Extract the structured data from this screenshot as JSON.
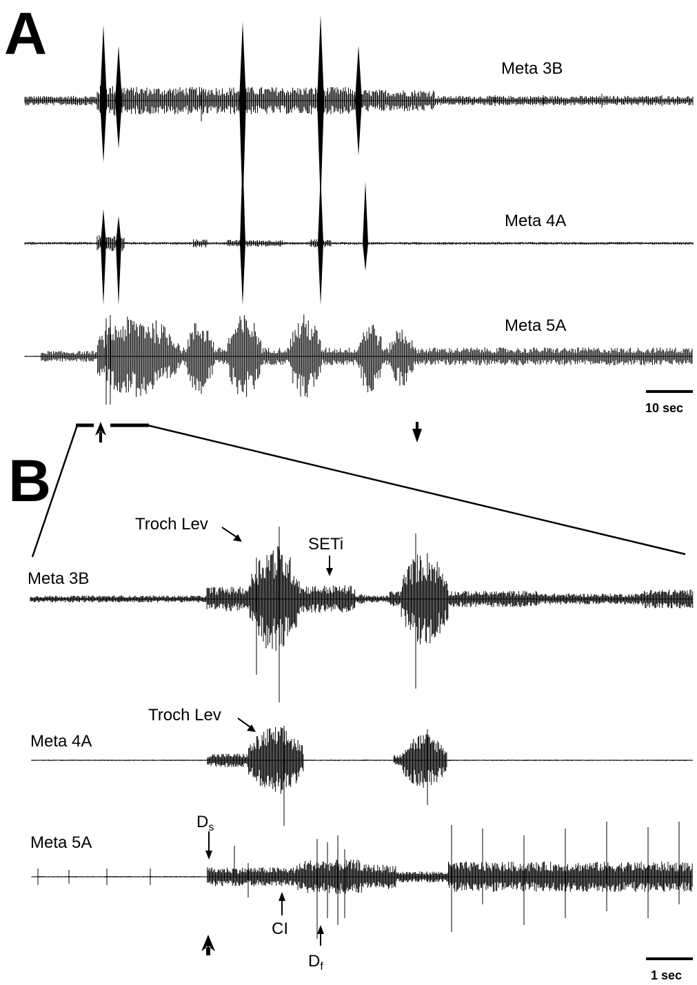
{
  "panel_a": {
    "letter": "A",
    "traces": [
      {
        "label": "Meta 3B"
      },
      {
        "label": "Meta 4A"
      },
      {
        "label": "Meta 5A"
      }
    ],
    "scale_bar_label": "10 sec"
  },
  "panel_b": {
    "letter": "B",
    "traces": [
      {
        "label": "Meta 3B"
      },
      {
        "label": "Meta 4A"
      },
      {
        "label": "Meta 5A"
      }
    ],
    "annotations": {
      "troch_lev_3b": "Troch Lev",
      "seti": "SETi",
      "troch_lev_4a": "Troch Lev",
      "ds_main": "D",
      "ds_sub": "s",
      "ci": "CI",
      "df_main": "D",
      "df_sub": "f"
    },
    "scale_bar_label": "1 sec"
  }
}
